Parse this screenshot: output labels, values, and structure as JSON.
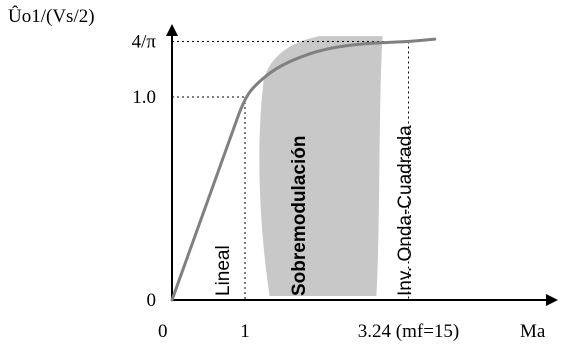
{
  "chart_data": {
    "type": "line",
    "ylabel": "Ûo1/(Vs/2)",
    "xlabel": "Ma",
    "xlim": [
      0,
      3.8
    ],
    "ylim": [
      0,
      1.3
    ],
    "x_ticks": [
      {
        "value": 0,
        "label": "0"
      },
      {
        "value": 1,
        "label": "1"
      },
      {
        "value": 3.24,
        "label": "3.24 (mf=15)"
      }
    ],
    "y_ticks": [
      {
        "value": 0,
        "label": "0"
      },
      {
        "value": 1.0,
        "label": "1.0"
      },
      {
        "value": 1.2732,
        "label": "4/π"
      }
    ],
    "series": [
      {
        "x": [
          0,
          0.2,
          0.4,
          0.6,
          0.8,
          1.0,
          1.2,
          1.5,
          2.0,
          2.5,
          3.0,
          3.24,
          3.6
        ],
        "y": [
          0,
          0.2,
          0.4,
          0.6,
          0.8,
          1.0,
          1.08,
          1.16,
          1.23,
          1.26,
          1.27,
          1.273,
          1.285
        ]
      }
    ],
    "regions": [
      {
        "label": "Lineal",
        "from": 0,
        "to": 1,
        "shaded": false
      },
      {
        "label": "Sobremodulación",
        "from": 1.2,
        "to": 2.8,
        "shaded": true
      },
      {
        "label": "Inv. Onda-Cuadrada",
        "from": 3.24,
        "to": 3.8,
        "shaded": false
      }
    ],
    "grid": false,
    "colors": {
      "curve": "#808080",
      "shade": "#c8c8c8",
      "axis": "#000000"
    }
  }
}
